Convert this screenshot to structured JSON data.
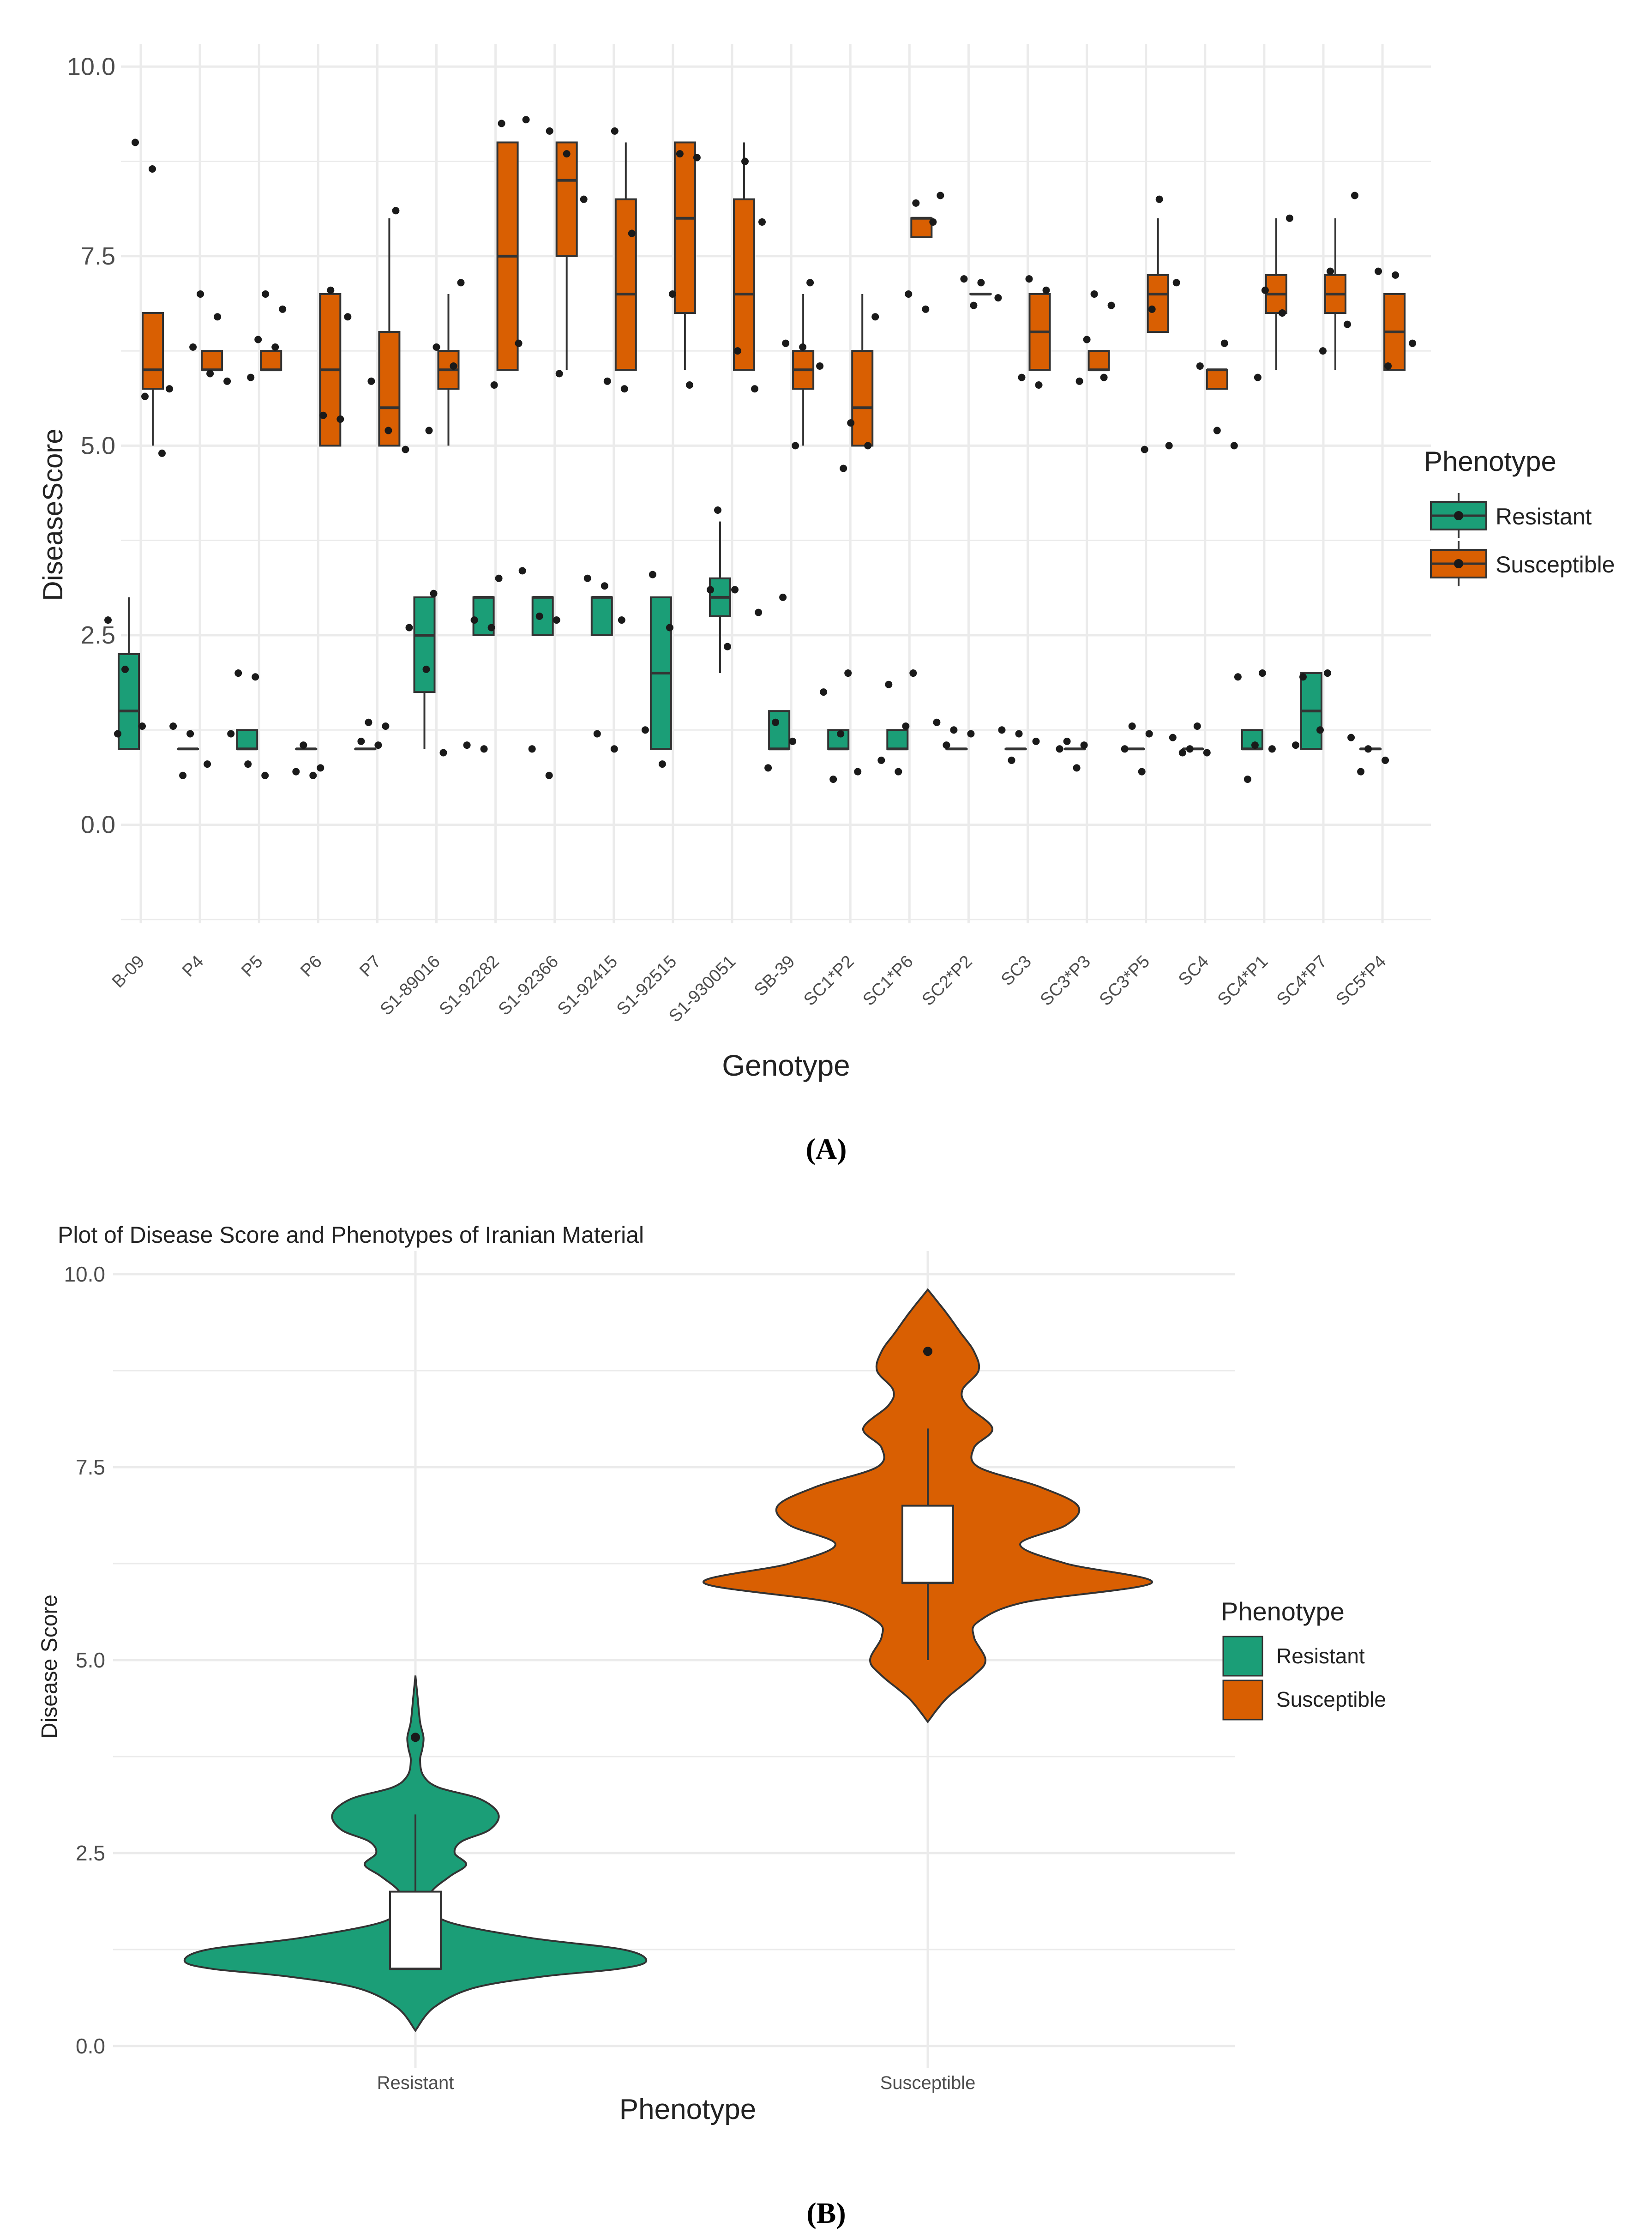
{
  "colors": {
    "resistant": "#1b9e77",
    "susceptible": "#d95f02",
    "box_line": "#333333",
    "point": "#1a1a1a",
    "grid": "#ebebeb"
  },
  "panel_labels": {
    "a": "(A)",
    "b": "(B)"
  },
  "chart_data": [
    {
      "type": "box",
      "id": "A",
      "title": "",
      "xlabel": "Genotype",
      "ylabel": "DiseaseScore",
      "ylim": [
        -1.3,
        10.3
      ],
      "yticks": [
        0.0,
        2.5,
        5.0,
        7.5,
        10.0
      ],
      "ytick_labels": [
        "0.0",
        "2.5",
        "5.0",
        "7.5",
        "10.0"
      ],
      "legend": {
        "title": "Phenotype",
        "position": "right",
        "entries": [
          {
            "label": "Resistant",
            "color": "#1b9e77"
          },
          {
            "label": "Susceptible",
            "color": "#d95f02"
          }
        ]
      },
      "categories": [
        "B-09",
        "P4",
        "P5",
        "P6",
        "P7",
        "S1-89016",
        "S1-92282",
        "S1-92366",
        "S1-92415",
        "S1-92515",
        "S1-930051",
        "SB-39",
        "SC1*P2",
        "SC1*P6",
        "SC2*P2",
        "SC3",
        "SC3*P3",
        "SC3*P5",
        "SC4",
        "SC4*P1",
        "SC4*P7",
        "SC5*P4"
      ],
      "series": [
        {
          "name": "Resistant",
          "boxes": [
            {
              "q1": 1.0,
              "median": 1.5,
              "q3": 2.25,
              "lo": 1.0,
              "hi": 3.0,
              "points": [
                2.7,
                2.05,
                1.3,
                1.2
              ]
            },
            {
              "q1": 1.0,
              "median": 1.0,
              "q3": 1.0,
              "lo": 1.0,
              "hi": 1.0,
              "points": [
                1.3,
                1.2,
                0.8,
                0.65
              ]
            },
            {
              "q1": 1.0,
              "median": 1.0,
              "q3": 1.25,
              "lo": 1.0,
              "hi": 1.25,
              "points": [
                2.0,
                1.95,
                1.2,
                0.8,
                0.65
              ]
            },
            {
              "q1": 1.0,
              "median": 1.0,
              "q3": 1.0,
              "lo": 1.0,
              "hi": 1.0,
              "points": [
                1.05,
                0.75,
                0.7,
                0.65
              ]
            },
            {
              "q1": 1.0,
              "median": 1.0,
              "q3": 1.0,
              "lo": 1.0,
              "hi": 1.0,
              "points": [
                1.35,
                1.3,
                1.1,
                1.05
              ]
            },
            {
              "q1": 1.75,
              "median": 2.5,
              "q3": 3.0,
              "lo": 1.0,
              "hi": 3.0,
              "points": [
                3.05,
                2.6,
                2.05,
                0.95
              ]
            },
            {
              "q1": 2.5,
              "median": 3.0,
              "q3": 3.0,
              "lo": 2.5,
              "hi": 3.0,
              "points": [
                3.25,
                2.7,
                2.6,
                1.05,
                1.0
              ]
            },
            {
              "q1": 2.5,
              "median": 3.0,
              "q3": 3.0,
              "lo": 2.5,
              "hi": 3.0,
              "points": [
                3.35,
                2.75,
                2.7,
                1.0,
                0.65
              ]
            },
            {
              "q1": 2.5,
              "median": 3.0,
              "q3": 3.0,
              "lo": 2.5,
              "hi": 3.0,
              "points": [
                3.25,
                3.15,
                2.7,
                1.2,
                1.0
              ]
            },
            {
              "q1": 1.0,
              "median": 2.0,
              "q3": 3.0,
              "lo": 1.0,
              "hi": 3.0,
              "points": [
                3.3,
                2.6,
                1.25,
                0.8
              ]
            },
            {
              "q1": 2.75,
              "median": 3.0,
              "q3": 3.25,
              "lo": 2.0,
              "hi": 4.0,
              "points": [
                4.15,
                3.1,
                3.1,
                2.35
              ]
            },
            {
              "q1": 1.0,
              "median": 1.0,
              "q3": 1.5,
              "lo": 1.0,
              "hi": 1.5,
              "points": [
                3.0,
                2.8,
                1.35,
                1.1,
                0.75
              ]
            },
            {
              "q1": 1.0,
              "median": 1.0,
              "q3": 1.25,
              "lo": 1.0,
              "hi": 1.25,
              "points": [
                2.0,
                1.75,
                1.2,
                0.7,
                0.6
              ]
            },
            {
              "q1": 1.0,
              "median": 1.0,
              "q3": 1.25,
              "lo": 1.0,
              "hi": 1.25,
              "points": [
                2.0,
                1.85,
                1.3,
                0.85,
                0.7
              ]
            },
            {
              "q1": 1.0,
              "median": 1.0,
              "q3": 1.0,
              "lo": 1.0,
              "hi": 1.0,
              "points": [
                1.35,
                1.25,
                1.2,
                1.05
              ]
            },
            {
              "q1": 1.0,
              "median": 1.0,
              "q3": 1.0,
              "lo": 1.0,
              "hi": 1.0,
              "points": [
                1.25,
                1.2,
                1.1,
                0.85
              ]
            },
            {
              "q1": 1.0,
              "median": 1.0,
              "q3": 1.0,
              "lo": 1.0,
              "hi": 1.0,
              "points": [
                1.1,
                1.05,
                1.0,
                0.75
              ]
            },
            {
              "q1": 1.0,
              "median": 1.0,
              "q3": 1.0,
              "lo": 1.0,
              "hi": 1.0,
              "points": [
                1.3,
                1.2,
                1.0,
                0.7
              ]
            },
            {
              "q1": 1.0,
              "median": 1.0,
              "q3": 1.0,
              "lo": 1.0,
              "hi": 1.0,
              "points": [
                1.3,
                1.15,
                1.0,
                0.95,
                0.95
              ]
            },
            {
              "q1": 1.0,
              "median": 1.0,
              "q3": 1.25,
              "lo": 1.0,
              "hi": 1.25,
              "points": [
                2.0,
                1.95,
                1.05,
                1.0,
                0.6
              ]
            },
            {
              "q1": 1.0,
              "median": 1.5,
              "q3": 2.0,
              "lo": 1.0,
              "hi": 2.0,
              "points": [
                2.0,
                1.95,
                1.25,
                1.05
              ]
            },
            {
              "q1": 1.0,
              "median": 1.0,
              "q3": 1.0,
              "lo": 1.0,
              "hi": 1.0,
              "points": [
                1.15,
                1.0,
                0.85,
                0.7
              ]
            }
          ]
        },
        {
          "name": "Susceptible",
          "boxes": [
            {
              "q1": 5.75,
              "median": 6.0,
              "q3": 6.75,
              "lo": 5.0,
              "hi": 6.75,
              "points": [
                9.0,
                8.65,
                5.75,
                5.65,
                4.9
              ]
            },
            {
              "q1": 6.0,
              "median": 6.0,
              "q3": 6.25,
              "lo": 6.0,
              "hi": 6.25,
              "points": [
                7.0,
                6.7,
                6.3,
                5.95,
                5.85
              ]
            },
            {
              "q1": 6.0,
              "median": 6.0,
              "q3": 6.25,
              "lo": 6.0,
              "hi": 6.25,
              "points": [
                7.0,
                6.8,
                6.4,
                6.3,
                5.9
              ]
            },
            {
              "q1": 5.0,
              "median": 6.0,
              "q3": 7.0,
              "lo": 5.0,
              "hi": 7.0,
              "points": [
                7.05,
                6.7,
                5.4,
                5.35
              ]
            },
            {
              "q1": 5.0,
              "median": 5.5,
              "q3": 6.5,
              "lo": 5.0,
              "hi": 8.0,
              "points": [
                8.1,
                5.85,
                5.2,
                4.95
              ]
            },
            {
              "q1": 5.75,
              "median": 6.0,
              "q3": 6.25,
              "lo": 5.0,
              "hi": 7.0,
              "points": [
                7.15,
                6.3,
                6.05,
                5.2
              ]
            },
            {
              "q1": 6.0,
              "median": 7.5,
              "q3": 9.0,
              "lo": 6.0,
              "hi": 9.0,
              "points": [
                9.3,
                9.25,
                6.35,
                5.8
              ]
            },
            {
              "q1": 7.5,
              "median": 8.5,
              "q3": 9.0,
              "lo": 6.0,
              "hi": 9.0,
              "points": [
                9.15,
                8.85,
                8.25,
                5.95
              ]
            },
            {
              "q1": 6.0,
              "median": 7.0,
              "q3": 8.25,
              "lo": 6.0,
              "hi": 9.0,
              "points": [
                9.15,
                7.8,
                5.85,
                5.75
              ]
            },
            {
              "q1": 6.75,
              "median": 8.0,
              "q3": 9.0,
              "lo": 6.0,
              "hi": 9.0,
              "points": [
                8.85,
                8.8,
                7.0,
                5.8
              ]
            },
            {
              "q1": 6.0,
              "median": 7.0,
              "q3": 8.25,
              "lo": 6.0,
              "hi": 9.0,
              "points": [
                8.75,
                7.95,
                6.25,
                5.75
              ]
            },
            {
              "q1": 5.75,
              "median": 6.0,
              "q3": 6.25,
              "lo": 5.0,
              "hi": 7.0,
              "points": [
                7.15,
                6.35,
                6.3,
                6.05,
                5.0
              ]
            },
            {
              "q1": 5.0,
              "median": 5.5,
              "q3": 6.25,
              "lo": 5.0,
              "hi": 7.0,
              "points": [
                6.7,
                5.3,
                5.0,
                4.7
              ]
            },
            {
              "q1": 7.75,
              "median": 8.0,
              "q3": 8.0,
              "lo": 7.75,
              "hi": 8.0,
              "points": [
                8.3,
                8.2,
                7.95,
                7.0,
                6.8
              ]
            },
            {
              "q1": 7.0,
              "median": 7.0,
              "q3": 7.0,
              "lo": 7.0,
              "hi": 7.0,
              "points": [
                7.2,
                7.15,
                6.95,
                6.85
              ]
            },
            {
              "q1": 6.0,
              "median": 6.5,
              "q3": 7.0,
              "lo": 6.0,
              "hi": 7.0,
              "points": [
                7.2,
                7.05,
                5.9,
                5.8
              ]
            },
            {
              "q1": 6.0,
              "median": 6.0,
              "q3": 6.25,
              "lo": 6.0,
              "hi": 6.25,
              "points": [
                7.0,
                6.85,
                6.4,
                5.9,
                5.85
              ]
            },
            {
              "q1": 6.5,
              "median": 7.0,
              "q3": 7.25,
              "lo": 6.5,
              "hi": 8.0,
              "points": [
                8.25,
                7.15,
                6.8,
                5.0,
                4.95
              ]
            },
            {
              "q1": 5.75,
              "median": 6.0,
              "q3": 6.0,
              "lo": 5.75,
              "hi": 6.0,
              "points": [
                6.35,
                6.05,
                5.2,
                5.0
              ]
            },
            {
              "q1": 6.75,
              "median": 7.0,
              "q3": 7.25,
              "lo": 6.0,
              "hi": 8.0,
              "points": [
                8.0,
                7.05,
                6.75,
                5.9
              ]
            },
            {
              "q1": 6.75,
              "median": 7.0,
              "q3": 7.25,
              "lo": 6.0,
              "hi": 8.0,
              "points": [
                8.3,
                7.3,
                6.6,
                6.25
              ]
            },
            {
              "q1": 6.0,
              "median": 6.5,
              "q3": 7.0,
              "lo": 6.0,
              "hi": 7.0,
              "points": [
                7.3,
                7.25,
                6.35,
                6.05
              ]
            }
          ]
        }
      ]
    },
    {
      "type": "violin",
      "id": "B",
      "title": "Plot of Disease Score and Phenotypes of Iranian Material",
      "xlabel": "Phenotype",
      "ylabel": "Disease Score",
      "ylim": [
        0,
        10
      ],
      "yticks": [
        0.0,
        2.5,
        5.0,
        7.5,
        10.0
      ],
      "ytick_labels": [
        "0.0",
        "2.5",
        "5.0",
        "7.5",
        "10.0"
      ],
      "categories": [
        "Resistant",
        "Susceptible"
      ],
      "legend": {
        "title": "Phenotype",
        "position": "right",
        "entries": [
          {
            "label": "Resistant",
            "color": "#1b9e77"
          },
          {
            "label": "Susceptible",
            "color": "#d95f02"
          }
        ]
      },
      "series": [
        {
          "name": "Resistant",
          "box": {
            "q1": 1.0,
            "median": 1.0,
            "q3": 2.0,
            "lo": 1.0,
            "hi": 3.0
          },
          "outliers": [
            4.0
          ],
          "density_y": [
            0.2,
            0.5,
            0.75,
            0.9,
            1.0,
            1.1,
            1.25,
            1.4,
            1.6,
            1.8,
            2.0,
            2.2,
            2.35,
            2.5,
            2.65,
            2.8,
            3.0,
            3.2,
            3.35,
            3.5,
            3.7,
            3.85,
            4.0,
            4.2,
            4.5,
            4.8
          ],
          "density_w": [
            0.0,
            0.08,
            0.25,
            0.55,
            0.88,
            1.0,
            0.9,
            0.5,
            0.15,
            0.07,
            0.07,
            0.15,
            0.22,
            0.17,
            0.2,
            0.32,
            0.36,
            0.28,
            0.1,
            0.035,
            0.02,
            0.03,
            0.035,
            0.02,
            0.01,
            0.0
          ]
        },
        {
          "name": "Susceptible",
          "box": {
            "q1": 6.0,
            "median": 6.0,
            "q3": 7.0,
            "lo": 5.0,
            "hi": 8.0
          },
          "outliers": [
            9.0
          ],
          "density_y": [
            4.2,
            4.5,
            4.8,
            5.0,
            5.3,
            5.5,
            5.75,
            6.0,
            6.25,
            6.5,
            6.75,
            7.0,
            7.25,
            7.5,
            7.75,
            8.0,
            8.3,
            8.5,
            8.75,
            9.0,
            9.25,
            9.5,
            9.8
          ],
          "density_w": [
            0.0,
            0.08,
            0.2,
            0.25,
            0.2,
            0.22,
            0.42,
            0.97,
            0.6,
            0.4,
            0.6,
            0.65,
            0.48,
            0.22,
            0.2,
            0.28,
            0.17,
            0.15,
            0.22,
            0.2,
            0.14,
            0.08,
            0.0
          ]
        }
      ]
    }
  ]
}
